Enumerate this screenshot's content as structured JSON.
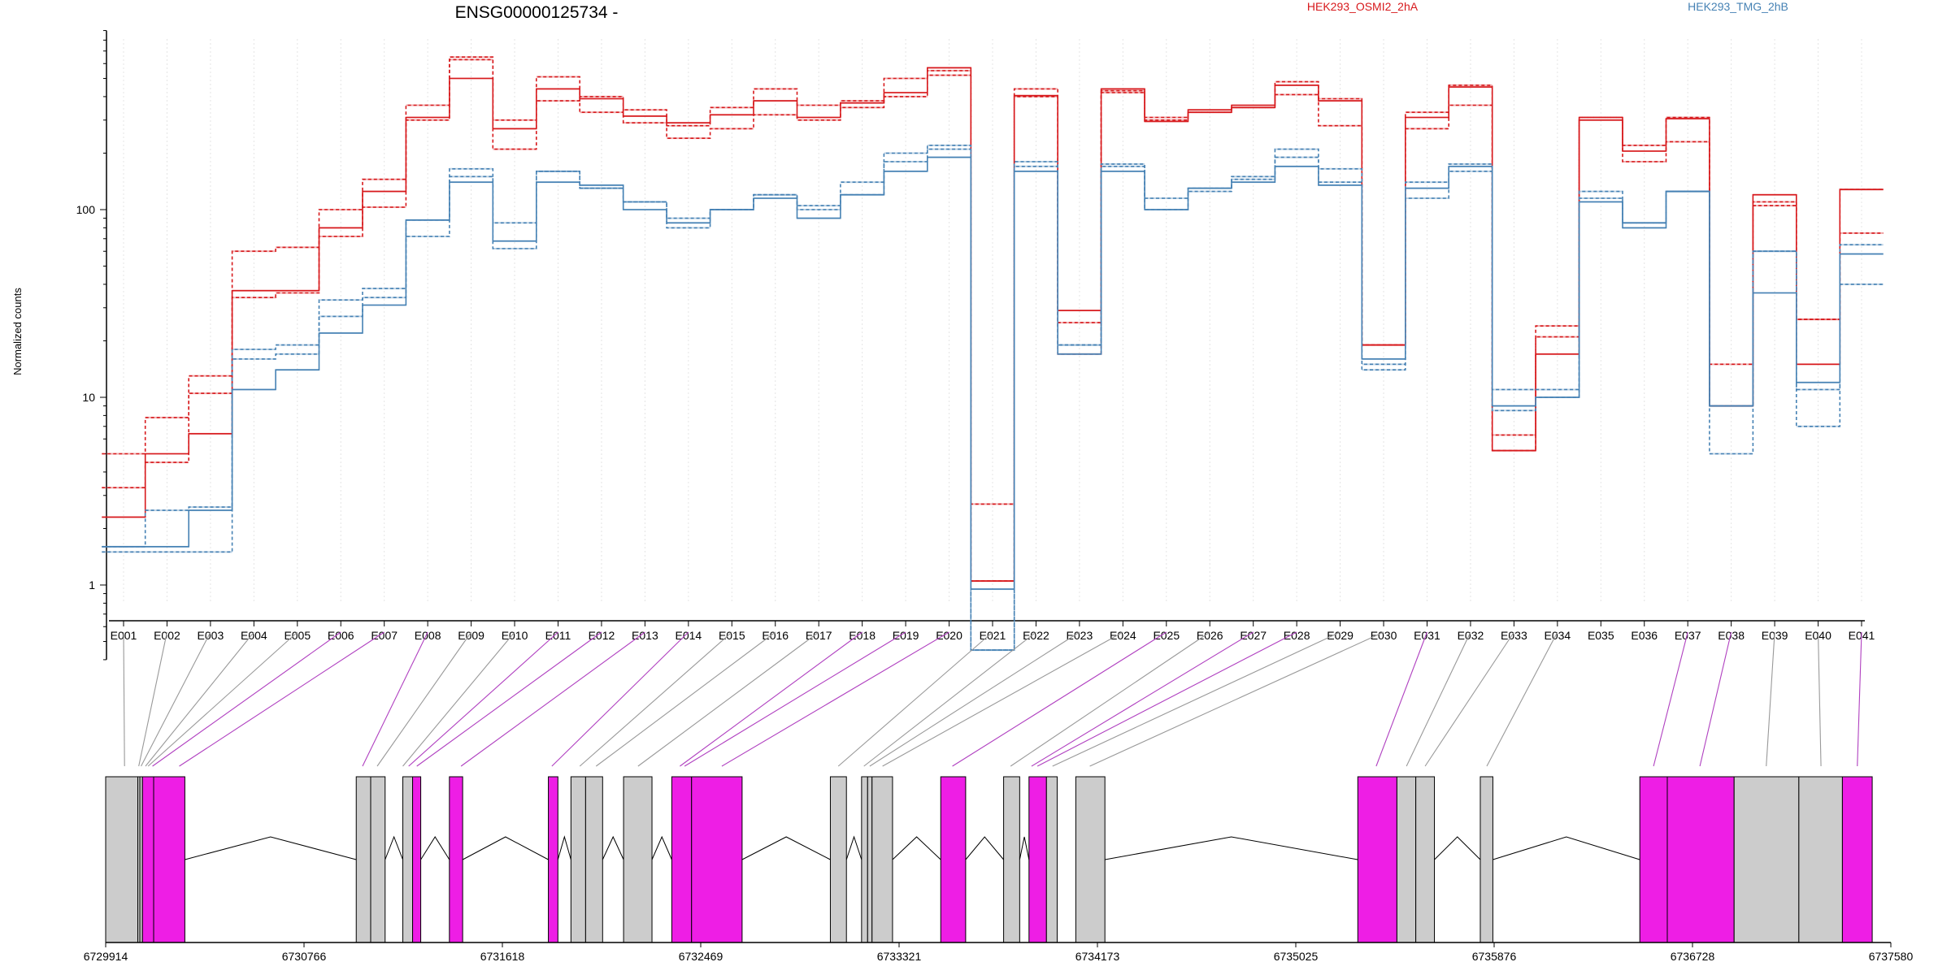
{
  "chart_data": {
    "type": "line",
    "title": "ENSG00000125734 -",
    "xlabel": "",
    "ylabel": "Normalized counts",
    "y_scale": "log",
    "ylim": [
      0.4,
      900
    ],
    "y_ticks": [
      "1",
      "10",
      "100"
    ],
    "grid": "vertical dashed",
    "legend_placement": "top-right",
    "categories": [
      "E001",
      "E002",
      "E003",
      "E004",
      "E005",
      "E006",
      "E007",
      "E008",
      "E009",
      "E010",
      "E011",
      "E012",
      "E013",
      "E014",
      "E015",
      "E016",
      "E017",
      "E018",
      "E019",
      "E020",
      "E021",
      "E022",
      "E023",
      "E024",
      "E025",
      "E026",
      "E027",
      "E028",
      "E029",
      "E030",
      "E031",
      "E032",
      "E033",
      "E034",
      "E035",
      "E036",
      "E037",
      "E038",
      "E039",
      "E040",
      "E041"
    ],
    "series": [
      {
        "name": "HEK293_OSMI2_2hA",
        "color": "#d7191c",
        "dash": "solid",
        "values": [
          2.3,
          5,
          6.4,
          37,
          37,
          80,
          125,
          310,
          500,
          270,
          440,
          390,
          315,
          290,
          320,
          380,
          310,
          370,
          420,
          570,
          1.05,
          405,
          29,
          440,
          295,
          340,
          360,
          460,
          380,
          19,
          310,
          450,
          5.2,
          17,
          300,
          205,
          305,
          9,
          120,
          15,
          128
        ]
      },
      {
        "name": "",
        "color": "#d7191c",
        "dash": "dashed",
        "values": [
          3.3,
          4.5,
          10.5,
          60,
          63,
          100,
          145,
          360,
          630,
          210,
          380,
          400,
          290,
          240,
          270,
          320,
          300,
          350,
          400,
          520,
          1.05,
          440,
          25,
          420,
          310,
          330,
          350,
          410,
          280,
          19,
          270,
          360,
          5.2,
          21,
          310,
          180,
          310,
          9,
          105,
          26,
          128
        ]
      },
      {
        "name": "",
        "color": "#d7191c",
        "dash": "dashed",
        "values": [
          5,
          7.8,
          13,
          34,
          36,
          72,
          103,
          300,
          650,
          300,
          510,
          330,
          340,
          280,
          350,
          440,
          360,
          380,
          500,
          550,
          2.7,
          400,
          17,
          430,
          300,
          330,
          350,
          480,
          390,
          19,
          330,
          460,
          6.3,
          24,
          310,
          220,
          230,
          15,
          110,
          26,
          75
        ]
      },
      {
        "name": "HEK293_TMG_2hB",
        "color": "#4682b4",
        "dash": "solid",
        "values": [
          1.6,
          1.6,
          2.5,
          11,
          14,
          22,
          31,
          88,
          140,
          68,
          140,
          135,
          100,
          85,
          100,
          115,
          90,
          120,
          160,
          190,
          0.95,
          160,
          17,
          160,
          100,
          130,
          140,
          170,
          135,
          16,
          130,
          170,
          9,
          10,
          110,
          80,
          125,
          9,
          36,
          12,
          58
        ]
      },
      {
        "name": "",
        "color": "#4682b4",
        "dash": "dashed",
        "values": [
          1.5,
          1.5,
          1.5,
          16,
          17,
          27,
          38,
          72,
          150,
          62,
          160,
          130,
          110,
          90,
          100,
          120,
          100,
          140,
          200,
          220,
          0.45,
          170,
          19,
          170,
          115,
          125,
          150,
          210,
          140,
          14,
          115,
          160,
          8.5,
          10,
          115,
          85,
          125,
          5,
          60,
          7,
          65
        ]
      },
      {
        "name": "",
        "color": "#4682b4",
        "dash": "dashed",
        "values": [
          1.6,
          2.5,
          2.6,
          18,
          19,
          33,
          34,
          88,
          165,
          85,
          160,
          130,
          110,
          80,
          100,
          120,
          105,
          120,
          180,
          210,
          0.45,
          180,
          19,
          175,
          100,
          130,
          145,
          190,
          165,
          15,
          140,
          175,
          11,
          11,
          125,
          85,
          125,
          9,
          60,
          11,
          40
        ]
      }
    ]
  },
  "gene_model": {
    "coordinate_ticks": [
      "6729914",
      "6730766",
      "6731618",
      "6732469",
      "6733321",
      "6734173",
      "6735025",
      "6735876",
      "6736728",
      "6737580"
    ],
    "range": [
      6729914,
      6737580
    ],
    "exons": [
      {
        "start": 6729914,
        "end": 6730052,
        "color": "gray"
      },
      {
        "start": 6730052,
        "end": 6730061,
        "color": "gray"
      },
      {
        "start": 6730061,
        "end": 6730072,
        "color": "gray"
      },
      {
        "start": 6730072,
        "end": 6730120,
        "color": "magenta"
      },
      {
        "start": 6730120,
        "end": 6730254,
        "color": "magenta"
      },
      {
        "start": 6730990,
        "end": 6731052,
        "color": "gray"
      },
      {
        "start": 6731052,
        "end": 6731114,
        "color": "gray"
      },
      {
        "start": 6731190,
        "end": 6731232,
        "color": "gray"
      },
      {
        "start": 6731232,
        "end": 6731267,
        "color": "magenta"
      },
      {
        "start": 6731390,
        "end": 6731447,
        "color": "magenta"
      },
      {
        "start": 6731815,
        "end": 6731856,
        "color": "magenta"
      },
      {
        "start": 6731912,
        "end": 6731975,
        "color": "gray"
      },
      {
        "start": 6731975,
        "end": 6732048,
        "color": "gray"
      },
      {
        "start": 6732138,
        "end": 6732260,
        "color": "gray"
      },
      {
        "start": 6732345,
        "end": 6732430,
        "color": "magenta"
      },
      {
        "start": 6732430,
        "end": 6732647,
        "color": "magenta"
      },
      {
        "start": 6733026,
        "end": 6733095,
        "color": "gray"
      },
      {
        "start": 6733160,
        "end": 6733186,
        "color": "gray"
      },
      {
        "start": 6733186,
        "end": 6733205,
        "color": "gray"
      },
      {
        "start": 6733205,
        "end": 6733293,
        "color": "gray"
      },
      {
        "start": 6733500,
        "end": 6733607,
        "color": "magenta"
      },
      {
        "start": 6733770,
        "end": 6733839,
        "color": "gray"
      },
      {
        "start": 6733879,
        "end": 6733954,
        "color": "magenta"
      },
      {
        "start": 6733954,
        "end": 6734000,
        "color": "gray"
      },
      {
        "start": 6734080,
        "end": 6734205,
        "color": "gray"
      },
      {
        "start": 6735291,
        "end": 6735459,
        "color": "magenta"
      },
      {
        "start": 6735459,
        "end": 6735540,
        "color": "gray"
      },
      {
        "start": 6735540,
        "end": 6735620,
        "color": "gray"
      },
      {
        "start": 6735817,
        "end": 6735871,
        "color": "gray"
      },
      {
        "start": 6736502,
        "end": 6736620,
        "color": "magenta"
      },
      {
        "start": 6736620,
        "end": 6736907,
        "color": "magenta"
      },
      {
        "start": 6736907,
        "end": 6737185,
        "color": "gray"
      },
      {
        "start": 6737185,
        "end": 6737372,
        "color": "gray"
      },
      {
        "start": 6737372,
        "end": 6737500,
        "color": "magenta"
      }
    ],
    "introns": [
      [
        6730254,
        6730990
      ],
      [
        6731114,
        6731190
      ],
      [
        6731267,
        6731390
      ],
      [
        6731447,
        6731815
      ],
      [
        6731856,
        6731912
      ],
      [
        6732048,
        6732138
      ],
      [
        6732260,
        6732345
      ],
      [
        6732647,
        6733026
      ],
      [
        6733095,
        6733160
      ],
      [
        6733293,
        6733500
      ],
      [
        6733607,
        6733770
      ],
      [
        6733839,
        6733879
      ],
      [
        6734205,
        6735291
      ],
      [
        6735620,
        6735817
      ],
      [
        6735871,
        6736502
      ]
    ],
    "exon_links": [
      {
        "exon": "E001",
        "pos": 6729995,
        "color": "gray"
      },
      {
        "exon": "E002",
        "pos": 6730056,
        "color": "gray"
      },
      {
        "exon": "E003",
        "pos": 6730066,
        "color": "gray"
      },
      {
        "exon": "E004",
        "pos": 6730085,
        "color": "gray"
      },
      {
        "exon": "E005",
        "pos": 6730096,
        "color": "gray"
      },
      {
        "exon": "E006",
        "pos": 6730115,
        "color": "magenta"
      },
      {
        "exon": "E007",
        "pos": 6730230,
        "color": "magenta"
      },
      {
        "exon": "E008",
        "pos": 6731017,
        "color": "magenta"
      },
      {
        "exon": "E009",
        "pos": 6731080,
        "color": "gray"
      },
      {
        "exon": "E010",
        "pos": 6731190,
        "color": "gray"
      },
      {
        "exon": "E011",
        "pos": 6731215,
        "color": "magenta"
      },
      {
        "exon": "E012",
        "pos": 6731250,
        "color": "magenta"
      },
      {
        "exon": "E013",
        "pos": 6731440,
        "color": "magenta"
      },
      {
        "exon": "E014",
        "pos": 6731830,
        "color": "magenta"
      },
      {
        "exon": "E015",
        "pos": 6731950,
        "color": "gray"
      },
      {
        "exon": "E016",
        "pos": 6732020,
        "color": "gray"
      },
      {
        "exon": "E017",
        "pos": 6732200,
        "color": "gray"
      },
      {
        "exon": "E018",
        "pos": 6732380,
        "color": "magenta"
      },
      {
        "exon": "E019",
        "pos": 6732400,
        "color": "magenta"
      },
      {
        "exon": "E020",
        "pos": 6732560,
        "color": "magenta"
      },
      {
        "exon": "E021",
        "pos": 6733060,
        "color": "gray"
      },
      {
        "exon": "E022",
        "pos": 6733170,
        "color": "gray"
      },
      {
        "exon": "E023",
        "pos": 6733195,
        "color": "gray"
      },
      {
        "exon": "E024",
        "pos": 6733250,
        "color": "gray"
      },
      {
        "exon": "E025",
        "pos": 6733550,
        "color": "magenta"
      },
      {
        "exon": "E026",
        "pos": 6733800,
        "color": "gray"
      },
      {
        "exon": "E027",
        "pos": 6733890,
        "color": "magenta"
      },
      {
        "exon": "E028",
        "pos": 6733915,
        "color": "magenta"
      },
      {
        "exon": "E029",
        "pos": 6733980,
        "color": "gray"
      },
      {
        "exon": "E030",
        "pos": 6734140,
        "color": "gray"
      },
      {
        "exon": "E031",
        "pos": 6735370,
        "color": "magenta"
      },
      {
        "exon": "E032",
        "pos": 6735500,
        "color": "gray"
      },
      {
        "exon": "E033",
        "pos": 6735580,
        "color": "gray"
      },
      {
        "exon": "E034",
        "pos": 6735845,
        "color": "gray"
      },
      {
        "exon": "E037",
        "pos": 6736561,
        "color": "magenta"
      },
      {
        "exon": "E038",
        "pos": 6736760,
        "color": "magenta"
      },
      {
        "exon": "E039",
        "pos": 6737045,
        "color": "gray"
      },
      {
        "exon": "E040",
        "pos": 6737280,
        "color": "gray"
      },
      {
        "exon": "E041",
        "pos": 6737436,
        "color": "magenta"
      }
    ]
  },
  "colors": {
    "series_red": "#d7191c",
    "series_blue": "#4682b4",
    "exon_gray": "#cccccc",
    "exon_magenta": "#ee1ee5",
    "link_gray": "#999999",
    "link_magenta": "#b040c0"
  }
}
